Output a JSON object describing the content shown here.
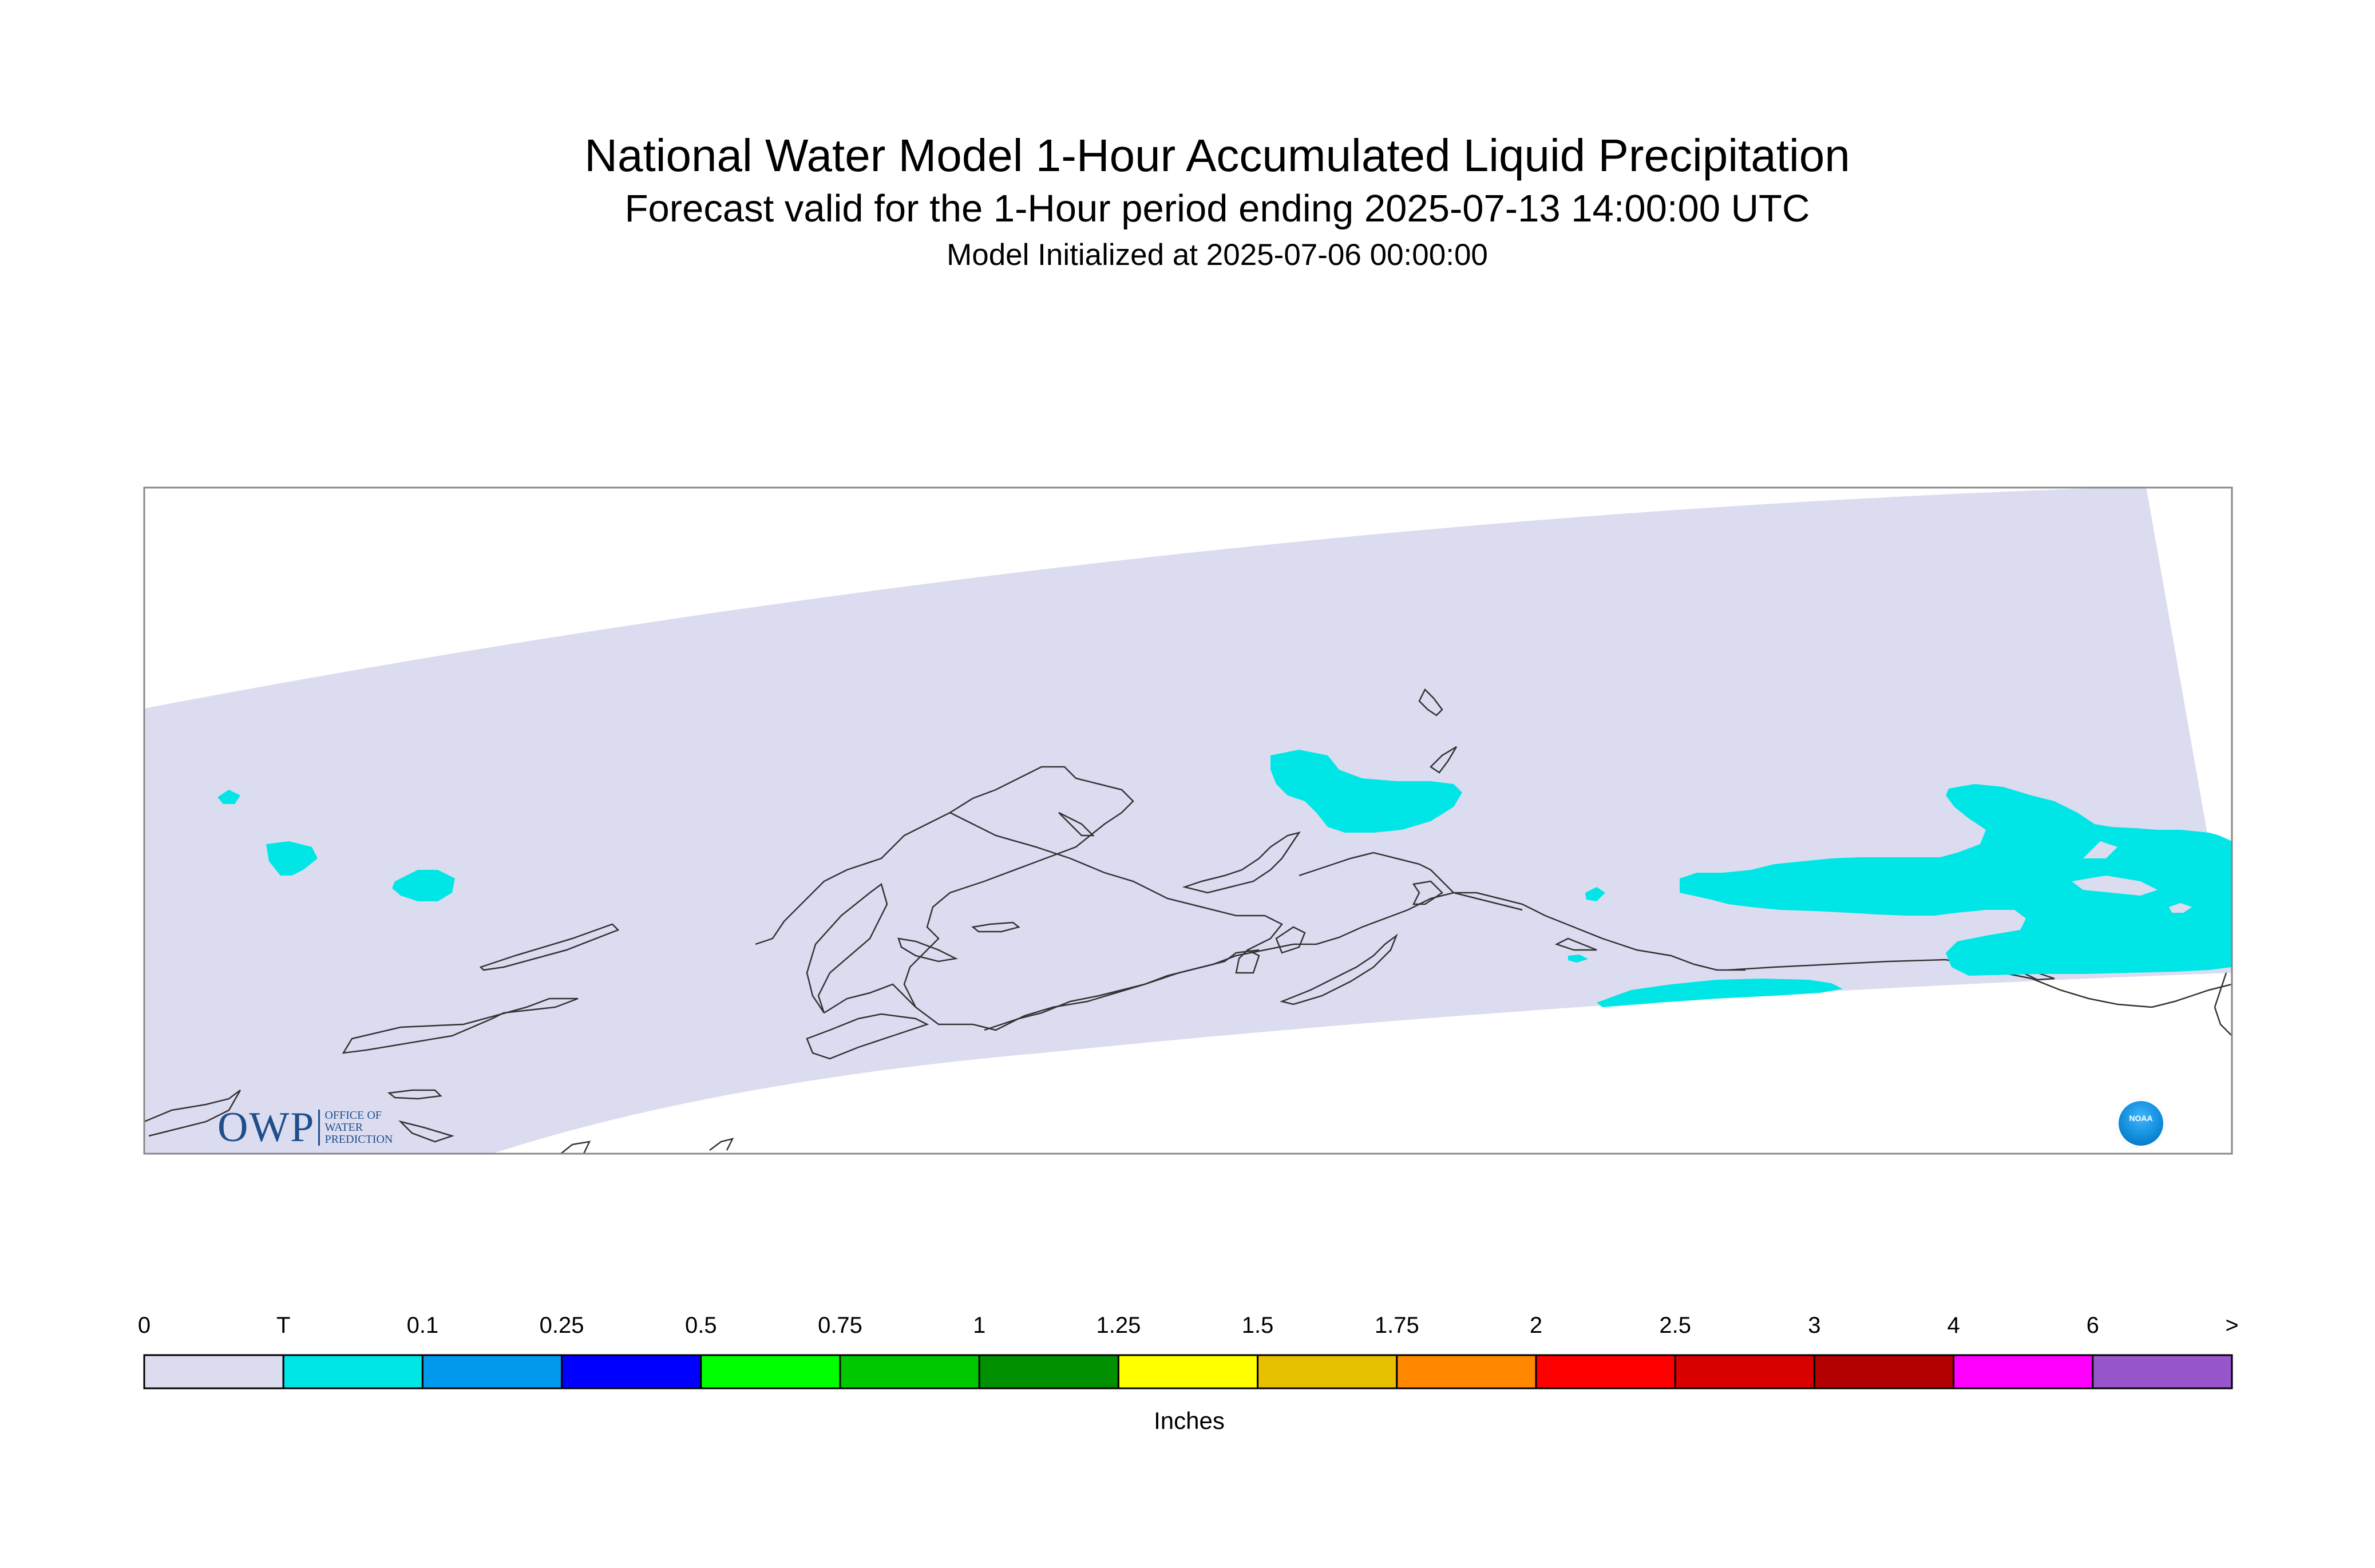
{
  "title": "National Water Model 1-Hour Accumulated Liquid Precipitation",
  "subtitle": "Forecast valid for the 1-Hour period ending 2025-07-13 14:00:00 UTC",
  "initialized": "Model Initialized at 2025-07-06 00:00:00",
  "map": {
    "region": "Alaska",
    "background_color": "#dcdcf0",
    "coastline_color": "#333333",
    "precip_areas_category": "T",
    "precip_areas_color": "#00e6e6"
  },
  "colorbar": {
    "units": "Inches",
    "tick_labels": [
      "0",
      "T",
      "0.1",
      "0.25",
      "0.5",
      "0.75",
      "1",
      "1.25",
      "1.5",
      "1.75",
      "2",
      "2.5",
      "3",
      "4",
      "6",
      ">"
    ],
    "bins": [
      {
        "from": "0",
        "to": "T",
        "color": "#dcdcf0"
      },
      {
        "from": "T",
        "to": "0.1",
        "color": "#00e6e6"
      },
      {
        "from": "0.1",
        "to": "0.25",
        "color": "#0099ee"
      },
      {
        "from": "0.25",
        "to": "0.5",
        "color": "#0000ff"
      },
      {
        "from": "0.5",
        "to": "0.75",
        "color": "#00ff00"
      },
      {
        "from": "0.75",
        "to": "1",
        "color": "#00c800"
      },
      {
        "from": "1",
        "to": "1.25",
        "color": "#009000"
      },
      {
        "from": "1.25",
        "to": "1.5",
        "color": "#ffff00"
      },
      {
        "from": "1.5",
        "to": "1.75",
        "color": "#e6bf00"
      },
      {
        "from": "1.75",
        "to": "2",
        "color": "#ff8800"
      },
      {
        "from": "2",
        "to": "2.5",
        "color": "#ff0000"
      },
      {
        "from": "2.5",
        "to": "3",
        "color": "#d90000"
      },
      {
        "from": "3",
        "to": "4",
        "color": "#b30000"
      },
      {
        "from": "4",
        "to": "6",
        "color": "#ff00ff"
      },
      {
        "from": "6",
        "to": ">",
        "color": "#9955cc"
      }
    ]
  },
  "logos": {
    "owp": {
      "text": "OWP",
      "subtext": "OFFICE OF WATER PREDICTION"
    },
    "noaa": {
      "text": "NOAA"
    }
  }
}
